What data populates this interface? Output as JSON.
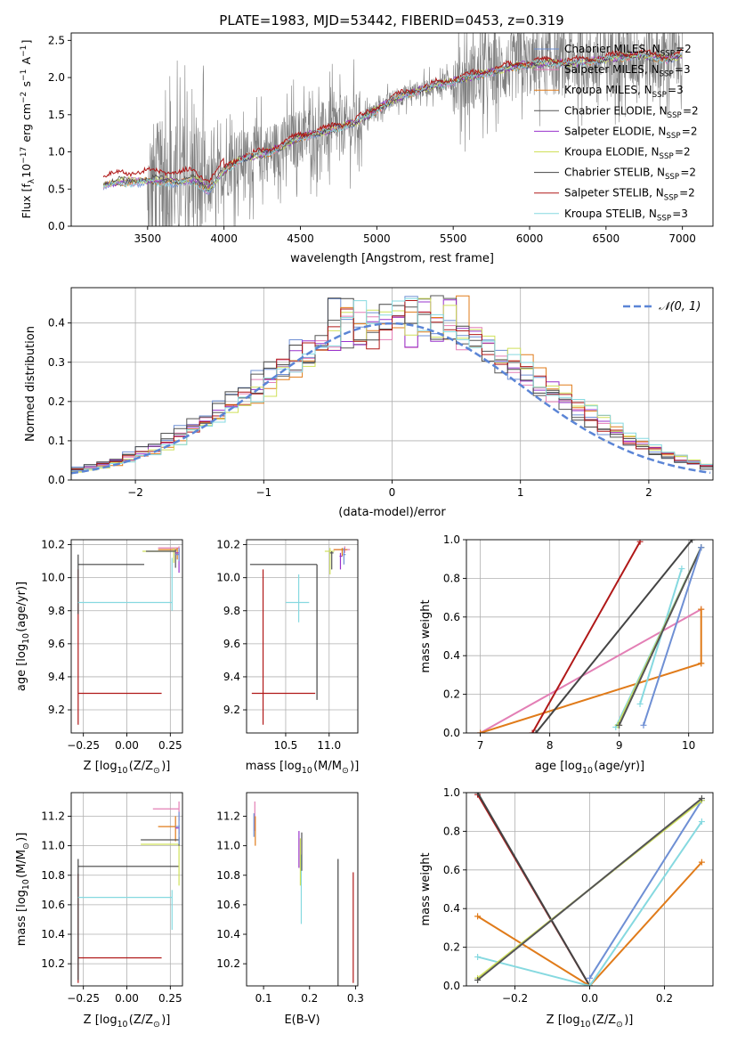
{
  "title": "PLATE=1983, MJD=53442, FIBERID=0453, z=0.319",
  "colors": {
    "Chabrier MILES": "#6e8fd4",
    "Salpeter MILES": "#e37fb5",
    "Kroupa MILES": "#e07b1a",
    "Chabrier ELODIE": "#555555",
    "Salpeter ELODIE": "#9933cc",
    "Kroupa ELODIE": "#cfe05a",
    "Chabrier STELIB": "#444444",
    "Salpeter STELIB": "#b01818",
    "Kroupa STELIB": "#86d9e0",
    "gray": "#808080",
    "normal": "#5b85d6"
  },
  "chart_data": [
    {
      "id": "spectrum",
      "type": "line",
      "xlabel": "wavelength [Angstrom, rest frame]",
      "ylabel_main": "Flux [f",
      "ylabel_sub": "λ",
      "ylabel_rest": "10",
      "ylabel_exp": "−17",
      "ylabel_tail": " erg cm",
      "ylabel_exp2": "−2",
      "ylabel_tail2": " s",
      "ylabel_exp3": "−1",
      "ylabel_tail3": " A",
      "ylabel_exp4": "−1",
      "ylabel_end": "]",
      "xlim": [
        3000,
        7200
      ],
      "ylim": [
        0,
        2.6
      ],
      "xticks": [
        3500,
        4000,
        4500,
        5000,
        5500,
        6000,
        6500,
        7000
      ],
      "yticks": [
        0.0,
        0.5,
        1.0,
        1.5,
        2.0,
        2.5
      ],
      "yticklabels": [
        "0.0",
        "0.5",
        "1.0",
        "1.5",
        "2.0",
        "2.5"
      ],
      "continuum_x": [
        3200,
        3300,
        3500,
        3600,
        3700,
        3800,
        3900,
        4000,
        4100,
        4300,
        4500,
        4700,
        4860,
        4950,
        5100,
        5300,
        5500,
        5700,
        5900,
        6100,
        6300,
        6500,
        6700,
        6900,
        7000
      ],
      "continuum_y": [
        0.55,
        0.6,
        0.62,
        0.62,
        0.6,
        0.63,
        0.5,
        0.75,
        0.9,
        1.0,
        1.2,
        1.3,
        1.4,
        1.5,
        1.7,
        1.85,
        1.95,
        2.05,
        2.15,
        2.2,
        2.2,
        2.25,
        2.3,
        2.25,
        2.3
      ],
      "legend": [
        {
          "label": "Chabrier MILES, N",
          "sub": "SSP",
          "tail": "=2"
        },
        {
          "label": "Salpeter MILES, N",
          "sub": "SSP",
          "tail": "=3"
        },
        {
          "label": "Kroupa MILES, N",
          "sub": "SSP",
          "tail": "=3"
        },
        {
          "label": "Chabrier ELODIE, N",
          "sub": "SSP",
          "tail": "=2"
        },
        {
          "label": "Salpeter ELODIE, N",
          "sub": "SSP",
          "tail": "=2"
        },
        {
          "label": "Kroupa ELODIE, N",
          "sub": "SSP",
          "tail": "=2"
        },
        {
          "label": "Chabrier STELIB, N",
          "sub": "SSP",
          "tail": "=2"
        },
        {
          "label": "Salpeter STELIB, N",
          "sub": "SSP",
          "tail": "=2"
        },
        {
          "label": "Kroupa STELIB, N",
          "sub": "SSP",
          "tail": "=3"
        }
      ],
      "legend_placement": "top-right",
      "grid": false
    },
    {
      "id": "residuals",
      "type": "histogram",
      "xlabel": "(data-model)/error",
      "ylabel": "Normed distribution",
      "xlim": [
        -2.5,
        2.5
      ],
      "ylim": [
        0,
        0.49
      ],
      "xticks": [
        -2,
        -1,
        0,
        1,
        2
      ],
      "xticklabels": [
        "−2",
        "−1",
        "0",
        "1",
        "2"
      ],
      "yticks": [
        0.0,
        0.1,
        0.2,
        0.3,
        0.4
      ],
      "yticklabels": [
        "0.0",
        "0.1",
        "0.2",
        "0.3",
        "0.4"
      ],
      "normal_label": "𝒩(0, 1)",
      "legend_placement": "top-right",
      "grid": true
    },
    {
      "id": "age_vs_Z",
      "type": "errorbar",
      "xlabel": "Z [log",
      "xlabel_sub": "10",
      "xlabel_rest": "(Z/Z",
      "xlabel_sub2": "⊙",
      "xlabel_end": ")]",
      "ylabel": "age  [log",
      "ylabel_sub": "10",
      "ylabel_rest": "(age/yr)]",
      "xlim": [
        -0.32,
        0.32
      ],
      "ylim": [
        9.06,
        10.23
      ],
      "xticks": [
        -0.25,
        0.0,
        0.25
      ],
      "xticklabels": [
        "−0.25",
        "0.00",
        "0.25"
      ],
      "yticks": [
        9.2,
        9.4,
        9.6,
        9.8,
        10.0,
        10.2
      ],
      "yticklabels": [
        "9.2",
        "9.4",
        "9.6",
        "9.8",
        "10.0",
        "10.2"
      ],
      "grid": true,
      "points": [
        {
          "model": "Salpeter STELIB",
          "x": -0.28,
          "y": 9.3,
          "xerr": [
            0,
            0.48
          ],
          "yerr": [
            0.19,
            0.75
          ]
        },
        {
          "model": "Chabrier STELIB",
          "x": -0.28,
          "y": 10.08,
          "xerr": [
            0,
            0.38
          ],
          "yerr": [
            0.3,
            0.06
          ]
        },
        {
          "model": "Kroupa STELIB",
          "x": 0.26,
          "y": 9.85,
          "xerr": [
            0.54,
            0
          ],
          "yerr": [
            0.05,
            0.27
          ]
        },
        {
          "model": "Salpeter MILES",
          "x": 0.3,
          "y": 10.18,
          "xerr": [
            0.12,
            0
          ],
          "yerr": [
            0.02,
            0.01
          ]
        },
        {
          "model": "Kroupa MILES",
          "x": 0.29,
          "y": 10.17,
          "xerr": [
            0.11,
            0
          ],
          "yerr": [
            0.06,
            0.01
          ]
        },
        {
          "model": "Kroupa ELODIE",
          "x": 0.27,
          "y": 10.16,
          "xerr": [
            0.18,
            0
          ],
          "yerr": [
            0.07,
            0.02
          ]
        },
        {
          "model": "Chabrier ELODIE",
          "x": 0.28,
          "y": 10.16,
          "xerr": [
            0.17,
            0
          ],
          "yerr": [
            0.1,
            0.01
          ]
        },
        {
          "model": "Salpeter ELODIE",
          "x": 0.3,
          "y": 10.15,
          "xerr": [
            0.02,
            0
          ],
          "yerr": [
            0.12,
            0.02
          ]
        },
        {
          "model": "Chabrier MILES",
          "x": 0.3,
          "y": 10.14,
          "xerr": [
            0.02,
            0
          ],
          "yerr": [
            0.04,
            0.04
          ]
        }
      ]
    },
    {
      "id": "age_vs_mass",
      "type": "errorbar",
      "xlabel": "mass [log",
      "xlabel_sub": "10",
      "xlabel_rest": "(M/M",
      "xlabel_sub2": "⊙",
      "xlabel_end": ")]",
      "xlim": [
        10.05,
        11.33
      ],
      "ylim": [
        9.06,
        10.23
      ],
      "xticks": [
        10.5,
        11.0
      ],
      "xticklabels": [
        "10.5",
        "11.0"
      ],
      "yticks": [
        9.2,
        9.4,
        9.6,
        9.8,
        10.0,
        10.2
      ],
      "yticklabels": [
        "9.2",
        "9.4",
        "9.6",
        "9.8",
        "10.0",
        "10.2"
      ],
      "grid": true,
      "points": [
        {
          "model": "Salpeter STELIB",
          "x": 10.24,
          "y": 9.3,
          "xerr": [
            0.13,
            0.6
          ],
          "yerr": [
            0.19,
            0.75
          ]
        },
        {
          "model": "Chabrier STELIB",
          "x": 10.86,
          "y": 10.08,
          "xerr": [
            0.77,
            0
          ],
          "yerr": [
            0.82,
            0
          ]
        },
        {
          "model": "Kroupa STELIB",
          "x": 10.65,
          "y": 9.85,
          "xerr": [
            0.15,
            0.12
          ],
          "yerr": [
            0.12,
            0.17
          ]
        },
        {
          "model": "Salpeter MILES",
          "x": 11.18,
          "y": 10.17,
          "xerr": [
            0.12,
            0.06
          ],
          "yerr": [
            0.02,
            0.02
          ]
        },
        {
          "model": "Kroupa MILES",
          "x": 11.15,
          "y": 10.17,
          "xerr": [
            0.1,
            0.06
          ],
          "yerr": [
            0.04,
            0.01
          ]
        },
        {
          "model": "Kroupa ELODIE",
          "x": 11.01,
          "y": 10.16,
          "xerr": [
            0.06,
            0.05
          ],
          "yerr": [
            0.14,
            0.02
          ]
        },
        {
          "model": "Chabrier ELODIE",
          "x": 11.03,
          "y": 10.15,
          "xerr": [
            0.02,
            0.02
          ],
          "yerr": [
            0.1,
            0.01
          ]
        },
        {
          "model": "Salpeter ELODIE",
          "x": 11.13,
          "y": 10.13,
          "xerr": [
            0.01,
            0.02
          ],
          "yerr": [
            0.08,
            0.02
          ]
        },
        {
          "model": "Chabrier MILES",
          "x": 11.17,
          "y": 10.14,
          "xerr": [
            0.01,
            0.02
          ],
          "yerr": [
            0.06,
            0.04
          ]
        }
      ]
    },
    {
      "id": "weight_vs_age",
      "type": "line",
      "xlabel": "age  [log",
      "xlabel_sub": "10",
      "xlabel_rest": "(age/yr)]",
      "ylabel": "mass weight",
      "xlim": [
        6.8,
        10.35
      ],
      "ylim": [
        0,
        1
      ],
      "xticks": [
        7,
        8,
        9,
        10
      ],
      "xticklabels": [
        "7",
        "8",
        "9",
        "10"
      ],
      "yticks": [
        0.0,
        0.2,
        0.4,
        0.6,
        0.8,
        1.0
      ],
      "yticklabels": [
        "0.0",
        "0.2",
        "0.4",
        "0.6",
        "0.8",
        "1.0"
      ],
      "grid": true,
      "series": [
        {
          "model": "Salpeter MILES",
          "x": [
            7.0,
            10.18
          ],
          "y": [
            0.0,
            0.64
          ]
        },
        {
          "model": "Kroupa MILES",
          "x": [
            7.0,
            10.18,
            10.18,
            10.18
          ],
          "y": [
            0.0,
            0.36,
            0.64,
            0.36
          ]
        },
        {
          "model": "Salpeter STELIB",
          "x": [
            7.75,
            9.3
          ],
          "y": [
            0.0,
            0.99
          ]
        },
        {
          "model": "Chabrier STELIB",
          "x": [
            7.8,
            10.05
          ],
          "y": [
            0.0,
            1.0
          ]
        },
        {
          "model": "Kroupa STELIB",
          "x": [
            9.3,
            9.9
          ],
          "y": [
            0.15,
            0.85
          ]
        },
        {
          "model": "Kroupa STELIB",
          "x": [
            8.95,
            10.18
          ],
          "y": [
            0.03,
            0.96
          ]
        },
        {
          "model": "Kroupa ELODIE",
          "x": [
            8.98,
            10.18
          ],
          "y": [
            0.04,
            0.96
          ]
        },
        {
          "model": "Chabrier ELODIE",
          "x": [
            9.0,
            10.18
          ],
          "y": [
            0.04,
            0.96
          ]
        },
        {
          "model": "Chabrier MILES",
          "x": [
            9.35,
            10.18
          ],
          "y": [
            0.04,
            0.96
          ]
        }
      ]
    },
    {
      "id": "mass_vs_Z",
      "type": "errorbar",
      "xlabel": "Z [log",
      "xlabel_sub": "10",
      "xlabel_rest": "(Z/Z",
      "xlabel_sub2": "⊙",
      "xlabel_end": ")]",
      "ylabel": "mass [log",
      "ylabel_sub": "10",
      "ylabel_rest": "(M/M",
      "ylabel_sub2": "⊙",
      "ylabel_end": ")]",
      "xlim": [
        -0.32,
        0.32
      ],
      "ylim": [
        10.05,
        11.36
      ],
      "xticks": [
        -0.25,
        0.0,
        0.25
      ],
      "xticklabels": [
        "−0.25",
        "0.00",
        "0.25"
      ],
      "yticks": [
        10.2,
        10.4,
        10.6,
        10.8,
        11.0,
        11.2
      ],
      "yticklabels": [
        "10.2",
        "10.4",
        "10.6",
        "10.8",
        "11.0",
        "11.2"
      ],
      "grid": true,
      "points": [
        {
          "model": "Salpeter STELIB",
          "x": -0.28,
          "y": 10.24,
          "xerr": [
            0,
            0.48
          ],
          "yerr": [
            0.17,
            0.57
          ]
        },
        {
          "model": "Chabrier STELIB",
          "x": -0.28,
          "y": 10.86,
          "xerr": [
            0,
            0.58
          ],
          "yerr": [
            0.77,
            0.05
          ]
        },
        {
          "model": "Kroupa STELIB",
          "x": 0.26,
          "y": 10.65,
          "xerr": [
            0.54,
            0
          ],
          "yerr": [
            0.22,
            0.05
          ]
        },
        {
          "model": "Salpeter MILES",
          "x": 0.3,
          "y": 11.25,
          "xerr": [
            0.15,
            0
          ],
          "yerr": [
            0.08,
            0.05
          ]
        },
        {
          "model": "Kroupa MILES",
          "x": 0.28,
          "y": 11.13,
          "xerr": [
            0.1,
            0
          ],
          "yerr": [
            0.1,
            0.07
          ]
        },
        {
          "model": "Kroupa ELODIE",
          "x": 0.3,
          "y": 11.01,
          "xerr": [
            0.22,
            0
          ],
          "yerr": [
            0.28,
            0.08
          ]
        },
        {
          "model": "Chabrier ELODIE",
          "x": 0.3,
          "y": 11.04,
          "xerr": [
            0.22,
            0
          ],
          "yerr": [
            0.04,
            0.02
          ]
        },
        {
          "model": "Salpeter ELODIE",
          "x": 0.3,
          "y": 11.12,
          "xerr": [
            0.02,
            0
          ],
          "yerr": [
            0.04,
            0.02
          ]
        },
        {
          "model": "Chabrier MILES",
          "x": 0.3,
          "y": 11.13,
          "xerr": [
            0.02,
            0
          ],
          "yerr": [
            0.12,
            0.1
          ]
        }
      ]
    },
    {
      "id": "mass_vs_EBV",
      "type": "errorbar",
      "xlabel": "E(B-V)",
      "xlim": [
        0.063,
        0.305
      ],
      "ylim": [
        10.05,
        11.36
      ],
      "xticks": [
        0.1,
        0.2,
        0.3
      ],
      "xticklabels": [
        "0.1",
        "0.2",
        "0.3"
      ],
      "yticks": [
        10.2,
        10.4,
        10.6,
        10.8,
        11.0,
        11.2
      ],
      "yticklabels": [
        "10.2",
        "10.4",
        "10.6",
        "10.8",
        "11.0",
        "11.2"
      ],
      "grid": false,
      "points": [
        {
          "model": "Salpeter STELIB",
          "x": 0.295,
          "y": 10.5,
          "xerr": [
            0,
            0
          ],
          "yerr": [
            0.43,
            0.32
          ]
        },
        {
          "model": "Chabrier STELIB",
          "x": 0.262,
          "y": 10.6,
          "xerr": [
            0,
            0
          ],
          "yerr": [
            0.55,
            0.31
          ]
        },
        {
          "model": "Kroupa STELIB",
          "x": 0.182,
          "y": 10.72,
          "xerr": [
            0,
            0
          ],
          "yerr": [
            0.25,
            0.22
          ]
        },
        {
          "model": "Kroupa ELODIE",
          "x": 0.18,
          "y": 10.95,
          "xerr": [
            0,
            0
          ],
          "yerr": [
            0.22,
            0.1
          ]
        },
        {
          "model": "Chabrier ELODIE",
          "x": 0.183,
          "y": 10.95,
          "xerr": [
            0,
            0
          ],
          "yerr": [
            0.12,
            0.14
          ]
        },
        {
          "model": "Salpeter ELODIE",
          "x": 0.177,
          "y": 11.0,
          "xerr": [
            0,
            0
          ],
          "yerr": [
            0.15,
            0.1
          ]
        },
        {
          "model": "Salpeter MILES",
          "x": 0.081,
          "y": 11.2,
          "xerr": [
            0,
            0
          ],
          "yerr": [
            0.1,
            0.1
          ]
        },
        {
          "model": "Kroupa MILES",
          "x": 0.082,
          "y": 11.1,
          "xerr": [
            0,
            0
          ],
          "yerr": [
            0.1,
            0.1
          ]
        },
        {
          "model": "Chabrier MILES",
          "x": 0.079,
          "y": 11.14,
          "xerr": [
            0,
            0
          ],
          "yerr": [
            0.08,
            0.08
          ]
        }
      ]
    },
    {
      "id": "weight_vs_Z",
      "type": "line",
      "xlabel": "Z [log",
      "xlabel_sub": "10",
      "xlabel_rest": "(Z/Z",
      "xlabel_sub2": "⊙",
      "xlabel_end": ")]",
      "ylabel": "mass weight",
      "xlim": [
        -0.33,
        0.33
      ],
      "ylim": [
        0,
        1
      ],
      "xticks": [
        -0.2,
        0.0,
        0.2
      ],
      "xticklabels": [
        "−0.2",
        "0.0",
        "0.2"
      ],
      "yticks": [
        0.0,
        0.2,
        0.4,
        0.6,
        0.8,
        1.0
      ],
      "yticklabels": [
        "0.0",
        "0.2",
        "0.4",
        "0.6",
        "0.8",
        "1.0"
      ],
      "grid": true,
      "series": [
        {
          "model": "Salpeter STELIB",
          "x": [
            -0.3,
            0.0
          ],
          "y": [
            0.99,
            0.0
          ]
        },
        {
          "model": "Chabrier STELIB",
          "x": [
            -0.3,
            0.0
          ],
          "y": [
            1.0,
            0.0
          ]
        },
        {
          "model": "Kroupa MILES",
          "x": [
            -0.3,
            0.0,
            0.3
          ],
          "y": [
            0.36,
            0.0,
            0.64
          ]
        },
        {
          "model": "Kroupa STELIB",
          "x": [
            -0.3,
            0.0,
            0.3
          ],
          "y": [
            0.15,
            0.0,
            0.85
          ]
        },
        {
          "model": "Chabrier MILES",
          "x": [
            0.0,
            0.3
          ],
          "y": [
            0.04,
            0.96
          ]
        },
        {
          "model": "Kroupa ELODIE",
          "x": [
            -0.3,
            0.3
          ],
          "y": [
            0.04,
            0.96
          ]
        },
        {
          "model": "Chabrier ELODIE",
          "x": [
            -0.3,
            0.3
          ],
          "y": [
            0.03,
            0.97
          ]
        }
      ]
    }
  ]
}
